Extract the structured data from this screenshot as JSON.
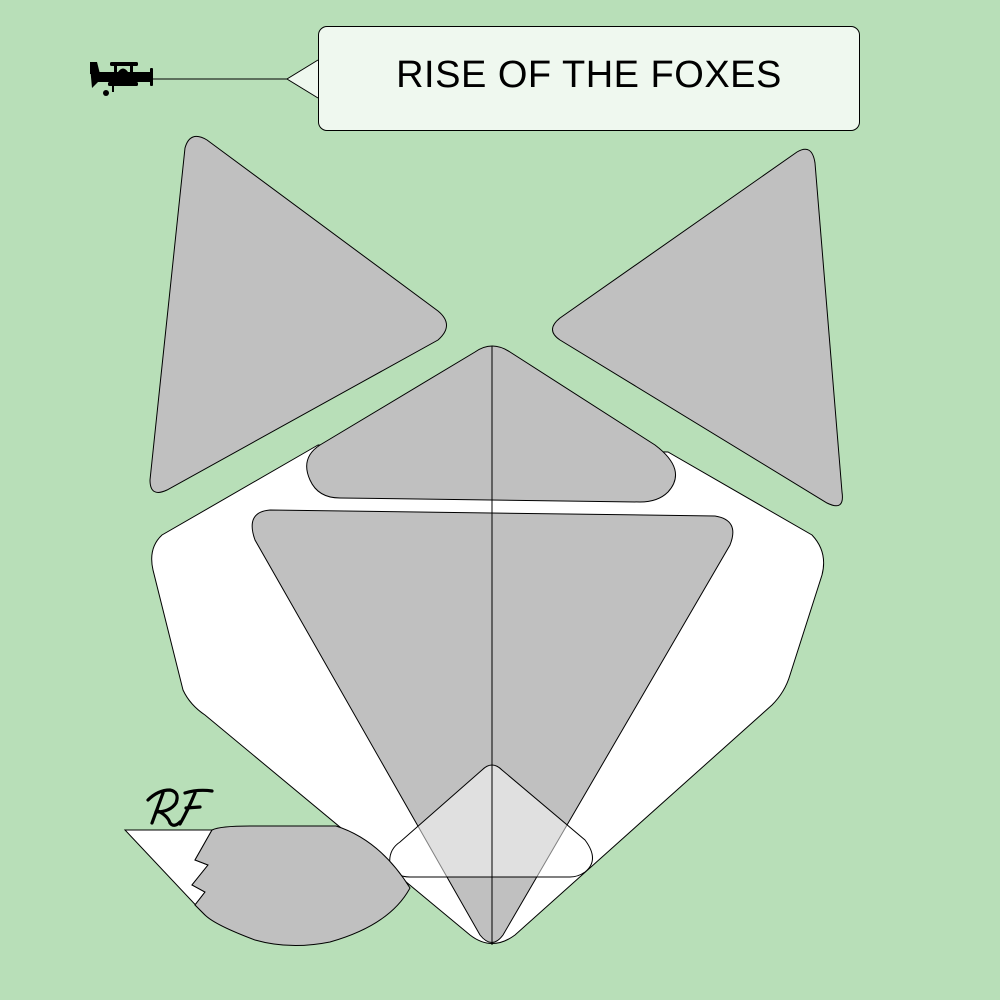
{
  "title": "RISE OF THE FOXES",
  "monogram": "RF",
  "colors": {
    "background": "#b8dfb8",
    "face": "#ffffff",
    "fur": "#c0c0c0",
    "banner": "#eff8ef",
    "outline": "#000000"
  },
  "icons": {
    "plane": "biplane-icon",
    "logo": "rf-monogram-logo"
  }
}
